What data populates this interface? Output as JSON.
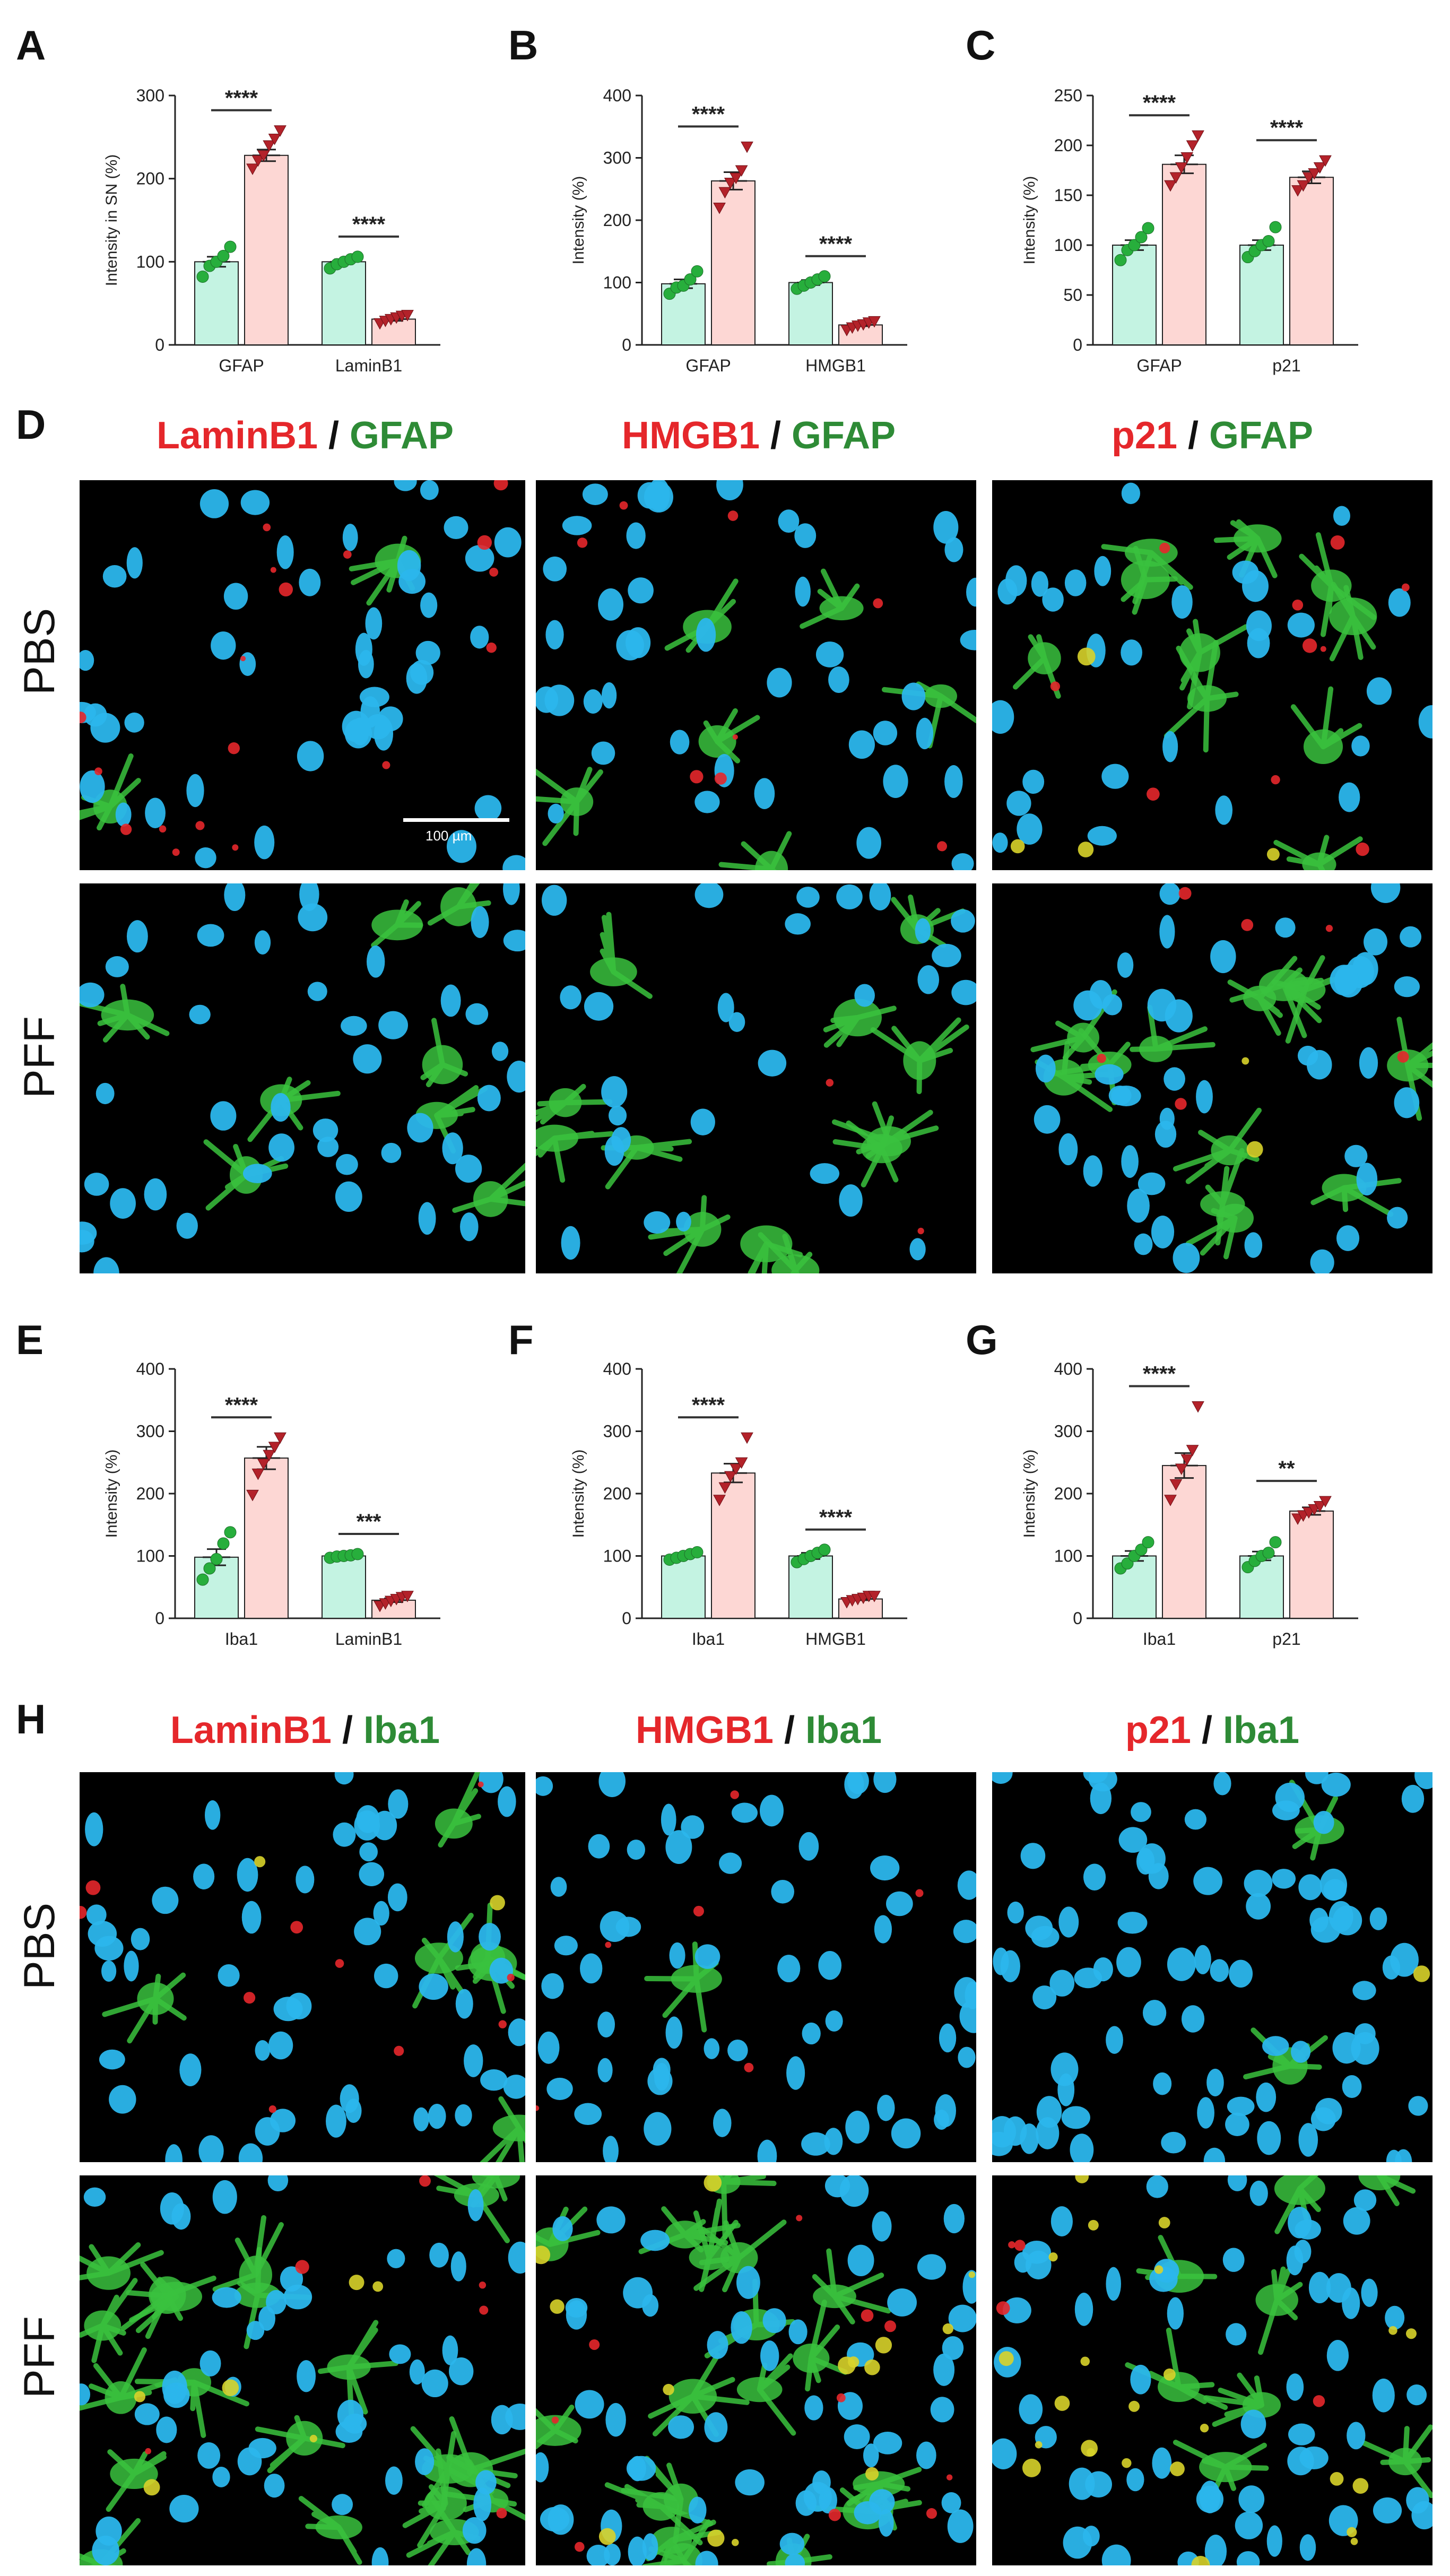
{
  "panel_letters": [
    "A",
    "B",
    "C",
    "D",
    "E",
    "F",
    "G",
    "H"
  ],
  "colors": {
    "pbs_fill": "#c4f3e2",
    "pff_fill": "#fdd7d4",
    "pbs_point": "#27ae3c",
    "pff_point": "#b3222a",
    "stain_red": "#e5272b",
    "stain_green": "#2e8b36",
    "nuclei": "#2bb6ec",
    "glia_green": "#3ac23e"
  },
  "chart_data": [
    {
      "type": "bar",
      "panel": "A",
      "ylabel": "Intensity in SN (%)",
      "ylim": [
        0,
        300
      ],
      "yticks": [
        0,
        100,
        200,
        300
      ],
      "categories": [
        "GFAP",
        "LaminB1"
      ],
      "groups": [
        {
          "category": "GFAP",
          "bars": [
            {
              "mean": 100,
              "sem": 6,
              "points": [
                82,
                95,
                100,
                107,
                118
              ]
            },
            {
              "mean": 228,
              "sem": 7,
              "points": [
                212,
                222,
                228,
                240,
                248,
                258
              ]
            }
          ],
          "significance": "****"
        },
        {
          "category": "LaminB1",
          "bars": [
            {
              "mean": 100,
              "sem": 3,
              "points": [
                92,
                97,
                100,
                103,
                106
              ]
            },
            {
              "mean": 31,
              "sem": 2,
              "points": [
                26,
                29,
                31,
                33,
                35,
                36
              ]
            }
          ],
          "significance": "****"
        }
      ]
    },
    {
      "type": "bar",
      "panel": "B",
      "ylabel": "Intensity (%)",
      "ylim": [
        0,
        400
      ],
      "yticks": [
        0,
        100,
        200,
        300,
        400
      ],
      "categories": [
        "GFAP",
        "HMGB1"
      ],
      "groups": [
        {
          "category": "GFAP",
          "bars": [
            {
              "mean": 98,
              "sem": 7,
              "points": [
                82,
                92,
                95,
                105,
                118
              ]
            },
            {
              "mean": 263,
              "sem": 14,
              "points": [
                220,
                245,
                260,
                268,
                280,
                318
              ]
            }
          ],
          "significance": "****"
        },
        {
          "category": "HMGB1",
          "bars": [
            {
              "mean": 100,
              "sem": 4,
              "points": [
                90,
                95,
                100,
                105,
                110
              ]
            },
            {
              "mean": 32,
              "sem": 2,
              "points": [
                24,
                28,
                31,
                33,
                36,
                38
              ]
            }
          ],
          "significance": "****"
        }
      ]
    },
    {
      "type": "bar",
      "panel": "C",
      "ylabel": "Intensity (%)",
      "ylim": [
        0,
        250
      ],
      "yticks": [
        0,
        50,
        100,
        150,
        200,
        250
      ],
      "categories": [
        "GFAP",
        "p21"
      ],
      "groups": [
        {
          "category": "GFAP",
          "bars": [
            {
              "mean": 100,
              "sem": 5,
              "points": [
                85,
                95,
                100,
                108,
                117
              ]
            },
            {
              "mean": 181,
              "sem": 9,
              "points": [
                160,
                168,
                178,
                188,
                200,
                210
              ]
            }
          ],
          "significance": "****"
        },
        {
          "category": "p21",
          "bars": [
            {
              "mean": 100,
              "sem": 5,
              "points": [
                88,
                94,
                100,
                104,
                118
              ]
            },
            {
              "mean": 168,
              "sem": 6,
              "points": [
                155,
                160,
                168,
                172,
                178,
                185
              ]
            }
          ],
          "significance": "****"
        }
      ]
    },
    {
      "type": "bar",
      "panel": "E",
      "ylabel": "Intensity (%)",
      "ylim": [
        0,
        400
      ],
      "yticks": [
        0,
        100,
        200,
        300,
        400
      ],
      "categories": [
        "Iba1",
        "LaminB1"
      ],
      "groups": [
        {
          "category": "Iba1",
          "bars": [
            {
              "mean": 98,
              "sem": 13,
              "points": [
                62,
                80,
                95,
                120,
                138
              ]
            },
            {
              "mean": 257,
              "sem": 18,
              "points": [
                198,
                232,
                248,
                262,
                275,
                290
              ]
            }
          ],
          "significance": "****"
        },
        {
          "category": "LaminB1",
          "bars": [
            {
              "mean": 100,
              "sem": 2,
              "points": [
                97,
                99,
                100,
                101,
                103
              ]
            },
            {
              "mean": 29,
              "sem": 3,
              "points": [
                20,
                24,
                28,
                31,
                34,
                36
              ]
            }
          ],
          "significance": "***"
        }
      ]
    },
    {
      "type": "bar",
      "panel": "F",
      "ylabel": "Intensity (%)",
      "ylim": [
        0,
        400
      ],
      "yticks": [
        0,
        100,
        200,
        300,
        400
      ],
      "categories": [
        "Iba1",
        "HMGB1"
      ],
      "groups": [
        {
          "category": "Iba1",
          "bars": [
            {
              "mean": 100,
              "sem": 4,
              "points": [
                94,
                97,
                100,
                103,
                106
              ]
            },
            {
              "mean": 233,
              "sem": 15,
              "points": [
                190,
                210,
                228,
                240,
                250,
                290
              ]
            }
          ],
          "significance": "****"
        },
        {
          "category": "HMGB1",
          "bars": [
            {
              "mean": 100,
              "sem": 5,
              "points": [
                90,
                95,
                100,
                105,
                110
              ]
            },
            {
              "mean": 31,
              "sem": 2,
              "points": [
                26,
                29,
                31,
                33,
                36,
                36
              ]
            }
          ],
          "significance": "****"
        }
      ]
    },
    {
      "type": "bar",
      "panel": "G",
      "ylabel": "Intensity (%)",
      "ylim": [
        0,
        400
      ],
      "yticks": [
        0,
        100,
        200,
        300,
        400
      ],
      "categories": [
        "Iba1",
        "p21"
      ],
      "groups": [
        {
          "category": "Iba1",
          "bars": [
            {
              "mean": 100,
              "sem": 8,
              "points": [
                80,
                88,
                100,
                110,
                122
              ]
            },
            {
              "mean": 245,
              "sem": 20,
              "points": [
                190,
                215,
                240,
                255,
                270,
                340
              ]
            }
          ],
          "significance": "****"
        },
        {
          "category": "p21",
          "bars": [
            {
              "mean": 100,
              "sem": 7,
              "points": [
                82,
                92,
                100,
                105,
                122
              ]
            },
            {
              "mean": 172,
              "sem": 6,
              "points": [
                160,
                165,
                170,
                175,
                180,
                188
              ]
            }
          ],
          "significance": "**"
        }
      ]
    }
  ],
  "micrographs": {
    "row_labels": [
      "PBS",
      "PFF",
      "PBS",
      "PFF"
    ],
    "titles_d": [
      {
        "red": "LaminB1",
        "sep": " / ",
        "green": "GFAP"
      },
      {
        "red": "HMGB1",
        "sep": " / ",
        "green": "GFAP"
      },
      {
        "red": "p21",
        "sep": " / ",
        "green": "GFAP"
      }
    ],
    "titles_h": [
      {
        "red": "LaminB1",
        "sep": " / ",
        "green": "Iba1"
      },
      {
        "red": "HMGB1",
        "sep": " / ",
        "green": "Iba1"
      },
      {
        "red": "p21",
        "sep": " / ",
        "green": "Iba1"
      }
    ],
    "scale_bar": "100 µm"
  }
}
